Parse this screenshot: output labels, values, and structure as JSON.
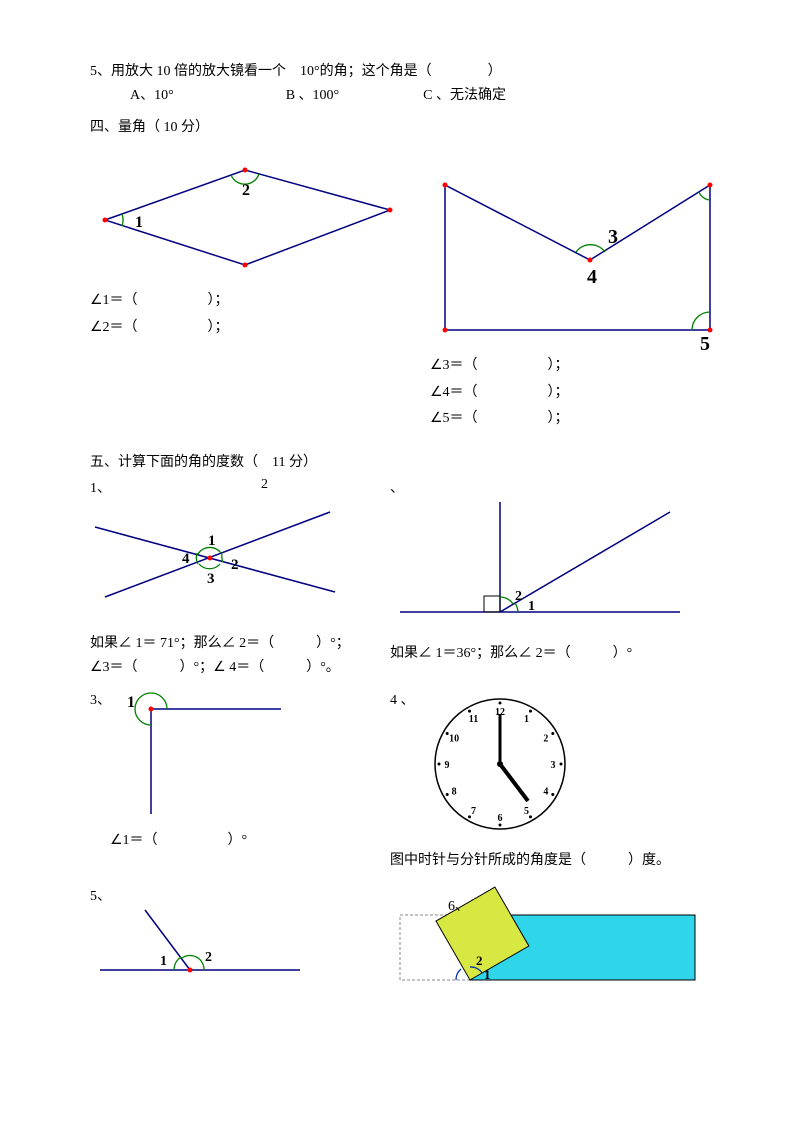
{
  "q5": {
    "prompt": "5、用放大 10 倍的放大镜看一个　10°的角；这个角是（　　　　）",
    "opts": "A、10°　　　　　　　　B 、100°　　　　　　C 、无法确定"
  },
  "sec4": {
    "title": "四、量角（ 10 分）",
    "a1": "∠1＝（　　　　　）；",
    "a2": "∠2＝（　　　　　）；",
    "a3": "∠3＝（　　　　　）；",
    "a4": "∠4＝（　　　　　）；",
    "a5": "∠5＝（　　　　　）；"
  },
  "sec5": {
    "title": "五、计算下面的角的度数（　11 分）",
    "q1": "1、",
    "q2": "2",
    "comma": "、",
    "q1text1": "如果∠ 1＝ 71°；那么∠ 2＝（　　　）°；",
    "q1text2": "∠3＝（　　　）°；∠ 4＝（　　　）°。",
    "q2text": "如果∠ 1＝36°；那么∠ 2＝（　　　）°",
    "q3": "3、",
    "q4": "4 、",
    "q3text": "∠1＝（　　　　　）°",
    "q4text": "图中时针与分针所成的角度是（　　　）度。",
    "q5": "5、",
    "q6": "6、",
    "clock": [
      "12",
      "1",
      "2",
      "3",
      "4",
      "5",
      "6",
      "7",
      "8",
      "9",
      "10",
      "11"
    ]
  }
}
